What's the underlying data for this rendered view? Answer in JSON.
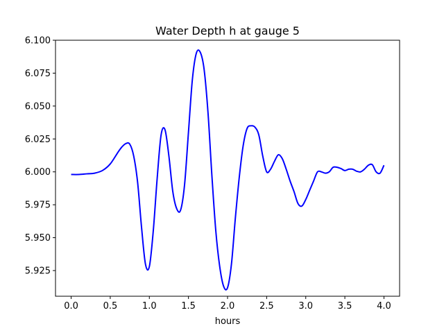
{
  "chart_data": {
    "type": "line",
    "title": "Water Depth h at gauge 5",
    "xlabel": "hours",
    "ylabel": "",
    "xlim": [
      -0.2,
      4.2
    ],
    "ylim": [
      5.9055,
      6.1
    ],
    "xticks": [
      "0.0",
      "0.5",
      "1.0",
      "1.5",
      "2.0",
      "2.5",
      "3.0",
      "3.5",
      "4.0"
    ],
    "yticks": [
      "5.925",
      "5.950",
      "5.975",
      "6.000",
      "6.025",
      "6.050",
      "6.075",
      "6.100"
    ],
    "grid": false,
    "series": [
      {
        "color": "#0000ff",
        "x": [
          0.0,
          0.1,
          0.2,
          0.3,
          0.4,
          0.5,
          0.6,
          0.65,
          0.7,
          0.75,
          0.8,
          0.85,
          0.9,
          0.95,
          1.0,
          1.05,
          1.1,
          1.15,
          1.2,
          1.25,
          1.3,
          1.35,
          1.4,
          1.45,
          1.5,
          1.55,
          1.6,
          1.65,
          1.7,
          1.75,
          1.8,
          1.85,
          1.9,
          1.95,
          2.0,
          2.05,
          2.1,
          2.15,
          2.2,
          2.25,
          2.3,
          2.35,
          2.4,
          2.45,
          2.5,
          2.55,
          2.6,
          2.65,
          2.7,
          2.75,
          2.8,
          2.85,
          2.9,
          2.95,
          3.0,
          3.05,
          3.1,
          3.15,
          3.2,
          3.25,
          3.3,
          3.35,
          3.4,
          3.45,
          3.5,
          3.55,
          3.6,
          3.65,
          3.7,
          3.75,
          3.8,
          3.85,
          3.9,
          3.95,
          4.0
        ],
        "y": [
          5.998,
          5.998,
          5.9985,
          5.999,
          6.001,
          6.006,
          6.015,
          6.019,
          6.0215,
          6.021,
          6.012,
          5.992,
          5.958,
          5.93,
          5.928,
          5.955,
          5.995,
          6.028,
          6.032,
          6.012,
          5.985,
          5.972,
          5.971,
          5.99,
          6.03,
          6.07,
          6.09,
          6.091,
          6.078,
          6.045,
          5.997,
          5.955,
          5.928,
          5.913,
          5.912,
          5.93,
          5.965,
          5.996,
          6.02,
          6.033,
          6.035,
          6.034,
          6.028,
          6.012,
          6.0,
          6.002,
          6.008,
          6.013,
          6.01,
          6.002,
          5.993,
          5.985,
          5.976,
          5.974,
          5.979,
          5.986,
          5.993,
          6.0,
          6.0,
          5.999,
          6.0,
          6.0035,
          6.0035,
          6.0025,
          6.001,
          6.002,
          6.002,
          6.0005,
          6.0,
          6.002,
          6.005,
          6.0055,
          6.0,
          5.999,
          6.005
        ]
      }
    ]
  }
}
